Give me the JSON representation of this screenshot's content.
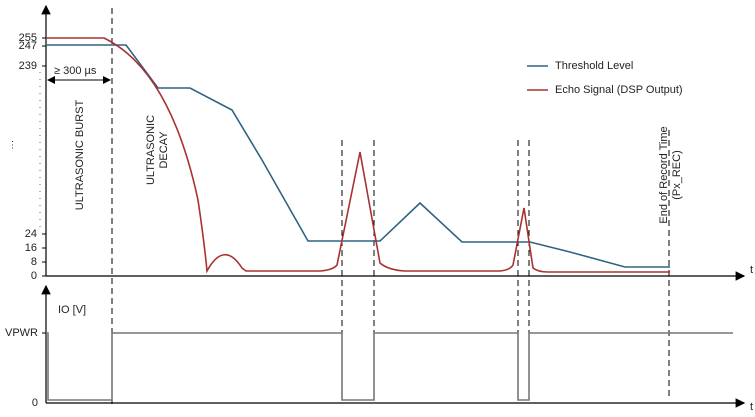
{
  "upper_plot": {
    "y_ticks": [
      "255",
      "247",
      "239",
      "24",
      "16",
      "8",
      "0"
    ],
    "x_axis_label": "t",
    "duration_label": "≥ 300 µs",
    "burst_label": "ULTRASONIC BURST",
    "decay_label": [
      "ULTRASONIC",
      "DECAY"
    ],
    "record_label": [
      "End of Record Time",
      "(Px_REC)"
    ],
    "legend": [
      "Threshold Level",
      "Echo Signal (DSP Output)"
    ]
  },
  "lower_plot": {
    "y_axis_label": "IO [V]",
    "y_ticks": [
      "VPWR",
      "0"
    ],
    "x_axis_label": "t"
  }
}
